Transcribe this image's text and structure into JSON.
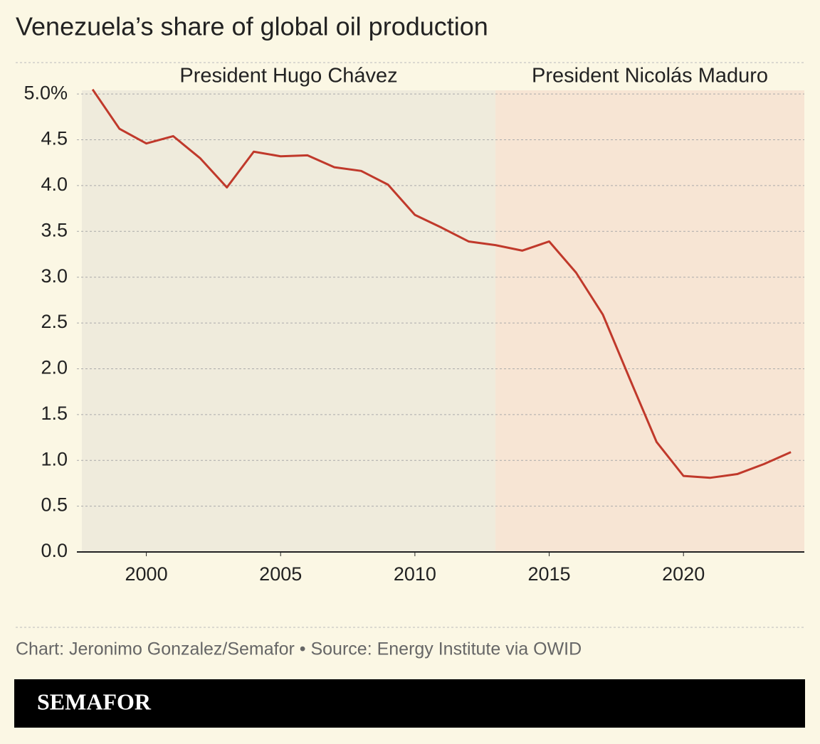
{
  "chart_data": {
    "type": "line",
    "title": "Venezuela’s share of global oil production",
    "x": [
      1998,
      1999,
      2000,
      2001,
      2002,
      2003,
      2004,
      2005,
      2006,
      2007,
      2008,
      2009,
      2010,
      2011,
      2012,
      2013,
      2014,
      2015,
      2016,
      2017,
      2018,
      2019,
      2020,
      2021,
      2022,
      2023,
      2024
    ],
    "values": [
      5.05,
      4.62,
      4.46,
      4.54,
      4.3,
      3.98,
      4.37,
      4.32,
      4.33,
      4.2,
      4.16,
      4.01,
      3.68,
      3.54,
      3.39,
      3.35,
      3.29,
      3.39,
      3.05,
      2.59,
      1.89,
      1.2,
      0.83,
      0.81,
      0.85,
      0.96,
      1.09
    ],
    "color": "#c0392b",
    "xlim": [
      1997.6,
      2024.5
    ],
    "xticks": [
      2000,
      2005,
      2010,
      2015,
      2020
    ],
    "ylim": [
      0,
      5.04
    ],
    "yticks": [
      {
        "value": 0,
        "label": "0.0"
      },
      0.5,
      {
        "value": 1,
        "label": "1.0"
      },
      1.5,
      {
        "value": 2,
        "label": "2.0"
      },
      2.5,
      {
        "value": 3,
        "label": "3.0"
      },
      3.5,
      {
        "value": 4,
        "label": "4.0"
      },
      4.5,
      {
        "value": 5,
        "label": "5.0%"
      }
    ],
    "grid": true,
    "regions": [
      {
        "label": "President Hugo Chávez",
        "start": 1997.6,
        "end": 2013,
        "color": "#efebdc"
      },
      {
        "label": "President Nicolás Maduro",
        "start": 2013,
        "end": 2024.5,
        "color": "#f7e5d4"
      }
    ],
    "source": "Chart: Jeronimo Gonzalez/Semafor • Source: Energy Institute via OWID",
    "brand": "SEMAFOR"
  }
}
